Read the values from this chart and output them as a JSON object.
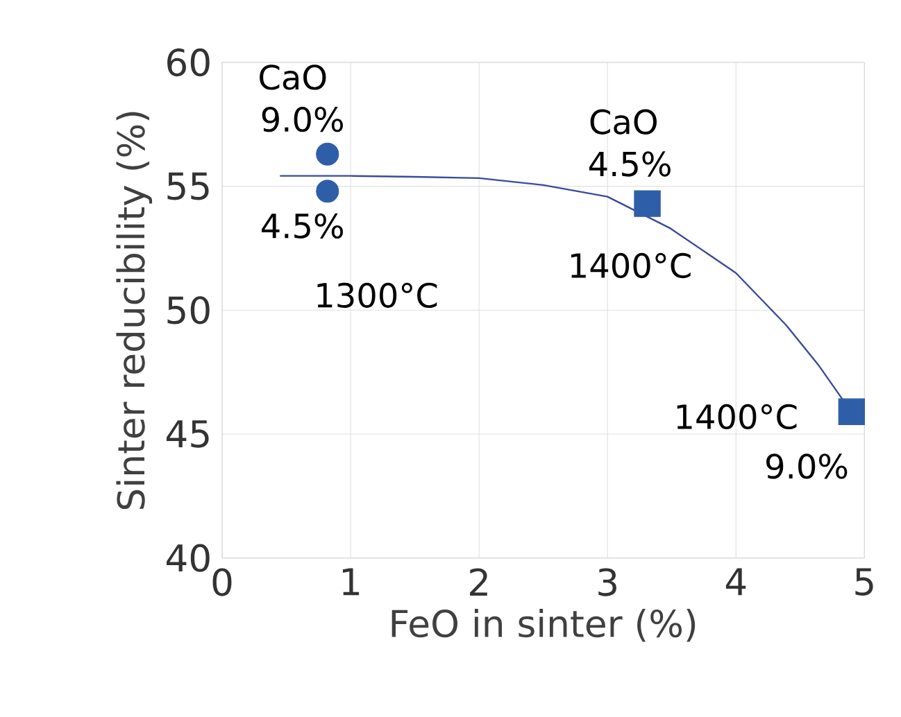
{
  "chart_data": {
    "type": "scatter",
    "xlabel": "FeO in sinter (%)",
    "ylabel": "Sinter reducibility (%)",
    "xlim": [
      0,
      5
    ],
    "ylim": [
      40,
      60
    ],
    "xticks": [
      0,
      1,
      2,
      3,
      4,
      5
    ],
    "yticks": [
      40,
      45,
      50,
      55,
      60
    ],
    "grid": true,
    "series": [
      {
        "marker": "circle",
        "color": "#2f5ea8",
        "x": [
          0.82,
          0.82
        ],
        "values": [
          56.3,
          54.8
        ]
      },
      {
        "marker": "square",
        "color": "#2f5ea8",
        "x": [
          3.31,
          4.9
        ],
        "values": [
          54.3,
          45.9
        ]
      },
      {
        "type": "line",
        "marker": "none",
        "line_style": "solid",
        "color": "#3a4a9c",
        "x": [
          0.45,
          1,
          1.5,
          2,
          2.5,
          3,
          3.49,
          4,
          4.39,
          4.64,
          4.87
        ],
        "values": [
          55.42,
          55.42,
          55.38,
          55.33,
          55.05,
          54.58,
          53.3,
          51.5,
          49.4,
          47.8,
          46.1
        ]
      }
    ],
    "annotations": [
      "CaO",
      "9.0%",
      "4.5%",
      "1300°C",
      "CaO",
      "4.5%",
      "1400°C",
      "1400°C",
      "9.0%"
    ]
  }
}
